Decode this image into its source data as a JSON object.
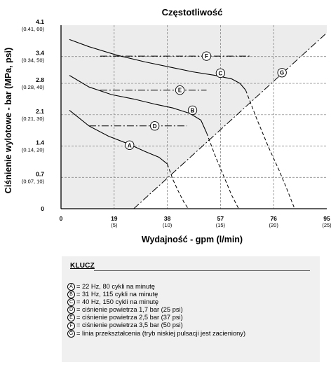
{
  "chart_data": {
    "type": "line",
    "title": "Częstotliwość",
    "xlabel": "Wydajność - gpm (l/min)",
    "ylabel": "Ciśnienie wylotowe - bar (MPa, psi)",
    "xlim": [
      0,
      95
    ],
    "ylim": [
      0,
      4.1
    ],
    "x_ticks": [
      {
        "value": 0,
        "label": "0",
        "sub": ""
      },
      {
        "value": 19,
        "label": "19",
        "sub": "(5)"
      },
      {
        "value": 38,
        "label": "38",
        "sub": "(10)"
      },
      {
        "value": 57,
        "label": "57",
        "sub": "(15)"
      },
      {
        "value": 76,
        "label": "76",
        "sub": "(20)"
      },
      {
        "value": 95,
        "label": "95",
        "sub": "(25)"
      }
    ],
    "y_ticks": [
      {
        "value": 0,
        "label": "0",
        "sub": ""
      },
      {
        "value": 0.7,
        "label": "0.7",
        "sub": "(0.07, 10)"
      },
      {
        "value": 1.4,
        "label": "1.4",
        "sub": "(0.14, 20)"
      },
      {
        "value": 2.1,
        "label": "2.1",
        "sub": "(0.21, 30)"
      },
      {
        "value": 2.8,
        "label": "2.8",
        "sub": "(0.28, 40)"
      },
      {
        "value": 3.4,
        "label": "3.4",
        "sub": "(0.34, 50)"
      },
      {
        "value": 4.1,
        "label": "4.1",
        "sub": "(0.41, 60)"
      }
    ],
    "grid": true,
    "shaded_region": "above changeover line G (low-pulse mode)",
    "series": [
      {
        "name": "A",
        "style": "solid",
        "x": [
          3,
          10,
          17,
          24,
          30,
          35,
          38
        ],
        "y": [
          2.2,
          1.85,
          1.62,
          1.45,
          1.28,
          1.15,
          1.0
        ]
      },
      {
        "name": "A",
        "style": "dashed",
        "x": [
          38,
          40,
          42,
          44,
          45.5
        ],
        "y": [
          1.0,
          0.65,
          0.38,
          0.14,
          0.0
        ]
      },
      {
        "name": "B",
        "style": "solid",
        "x": [
          3,
          10,
          18,
          26,
          34,
          40,
          46,
          50,
          52
        ],
        "y": [
          2.98,
          2.72,
          2.55,
          2.45,
          2.33,
          2.25,
          2.13,
          1.98,
          1.7
        ]
      },
      {
        "name": "B",
        "style": "dashed",
        "x": [
          52,
          55,
          58,
          61,
          63.5
        ],
        "y": [
          1.7,
          1.2,
          0.75,
          0.3,
          0.0
        ]
      },
      {
        "name": "C",
        "style": "solid",
        "x": [
          3,
          10,
          20,
          30,
          40,
          47,
          55,
          61,
          64,
          66
        ],
        "y": [
          3.78,
          3.62,
          3.43,
          3.28,
          3.15,
          3.06,
          2.98,
          2.9,
          2.8,
          2.65
        ]
      },
      {
        "name": "C",
        "style": "dashed",
        "x": [
          66,
          70,
          74,
          78,
          81,
          83.5
        ],
        "y": [
          2.65,
          2.0,
          1.4,
          0.85,
          0.4,
          0.0
        ]
      },
      {
        "name": "D",
        "style": "dashdot",
        "x": [
          10,
          45
        ],
        "y": [
          1.85,
          1.85
        ]
      },
      {
        "name": "E",
        "style": "dashdot",
        "x": [
          14,
          52
        ],
        "y": [
          2.65,
          2.65
        ]
      },
      {
        "name": "F",
        "style": "dashdot",
        "x": [
          14,
          68
        ],
        "y": [
          3.41,
          3.41
        ]
      },
      {
        "name": "G",
        "style": "dashdot",
        "x": [
          26,
          95
        ],
        "y": [
          0.0,
          3.93
        ]
      }
    ],
    "markers": [
      {
        "label": "A",
        "x": 24.5,
        "y": 1.42
      },
      {
        "label": "B",
        "x": 47,
        "y": 2.2
      },
      {
        "label": "C",
        "x": 57,
        "y": 3.03
      },
      {
        "label": "D",
        "x": 33.5,
        "y": 1.85
      },
      {
        "label": "E",
        "x": 42.5,
        "y": 2.65
      },
      {
        "label": "F",
        "x": 52,
        "y": 3.41
      },
      {
        "label": "G",
        "x": 79,
        "y": 3.04
      }
    ]
  },
  "key": {
    "title": "KLUCZ",
    "items": [
      {
        "letter": "A",
        "text": "= 22 Hz, 80 cykli na minutę"
      },
      {
        "letter": "B",
        "text": "= 31 Hz, 115 cykli na minutę"
      },
      {
        "letter": "C",
        "text": "= 40 Hz, 150 cykli na minutę"
      },
      {
        "letter": "D",
        "text": "= ciśnienie powietrza 1,7 bar (25 psi)"
      },
      {
        "letter": "E",
        "text": "= ciśnienie powietrza 2,5 bar (37 psi)"
      },
      {
        "letter": "F",
        "text": "= ciśnienie powietrza 3,5 bar (50 psi)"
      },
      {
        "letter": "G",
        "text": "= linia przekształcenia (tryb niskiej pulsacji jest zacieniony)"
      }
    ]
  }
}
